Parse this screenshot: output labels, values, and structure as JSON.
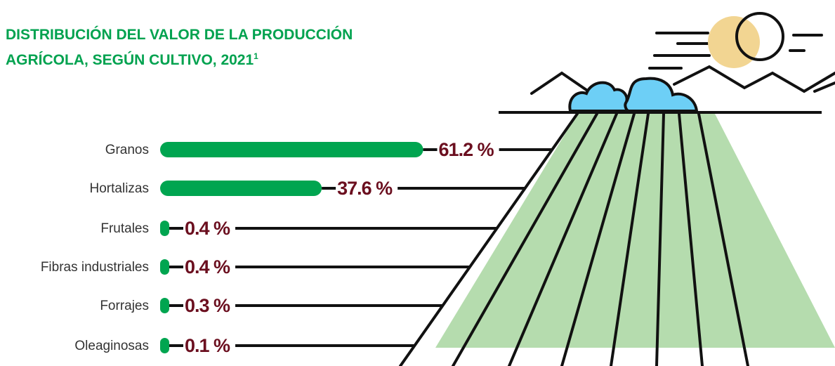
{
  "chart_data": {
    "type": "bar",
    "orientation": "horizontal",
    "title": [
      "DISTRIBUCIÓN DEL VALOR DE LA PRODUCCIÓN",
      "AGRÍCOLA, SEGÚN CULTIVO, 2021"
    ],
    "title_footnote": "1",
    "categories": [
      "Granos",
      "Hortalizas",
      "Frutales",
      "Fibras industriales",
      "Forrajes",
      "Oleaginosas"
    ],
    "values": [
      61.2,
      37.6,
      0.4,
      0.4,
      0.3,
      0.1
    ],
    "value_labels": [
      "61.2 %",
      "37.6 %",
      "0.4 %",
      "0.4 %",
      "0.3 %",
      "0.1 %"
    ],
    "color": "#00a550",
    "label_color": "#6b0f1f"
  }
}
